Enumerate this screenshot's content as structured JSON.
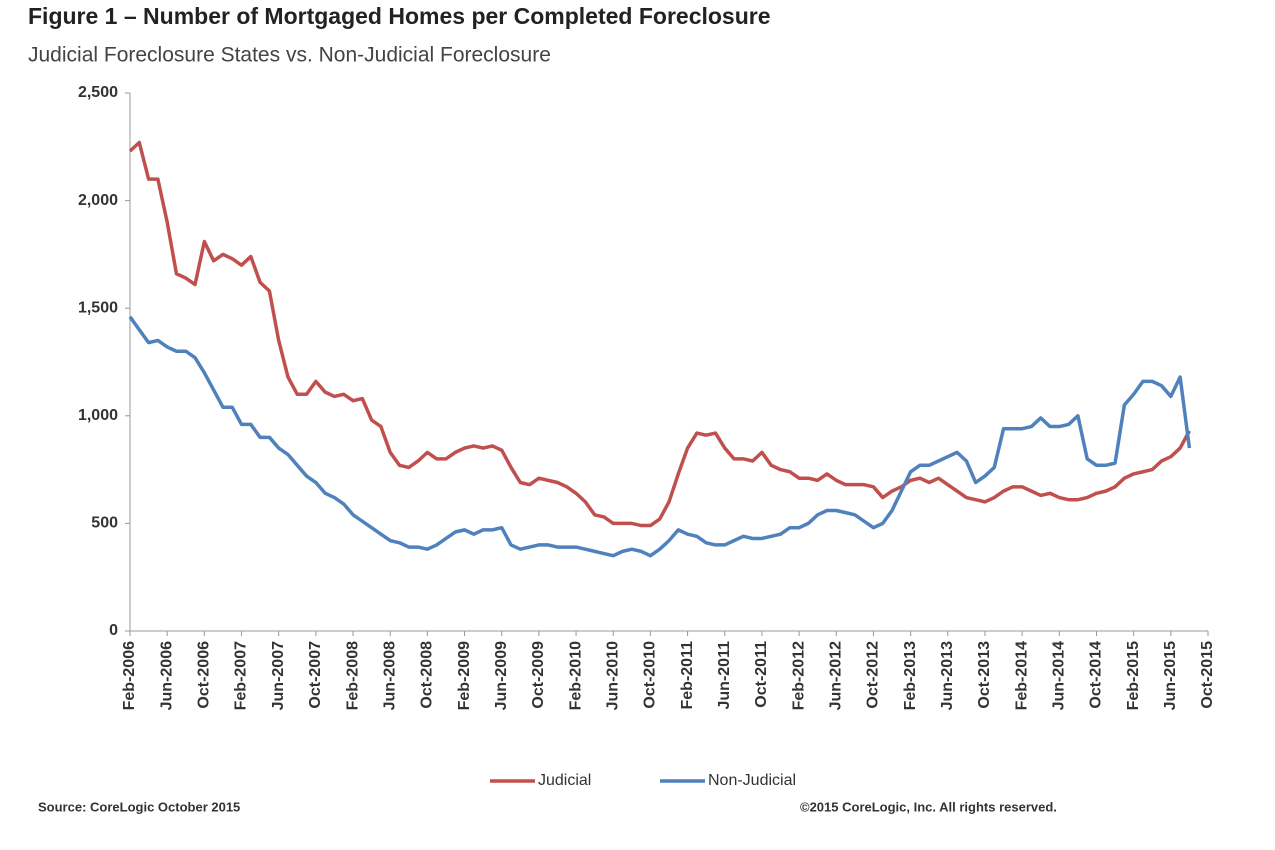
{
  "chart_data": {
    "type": "line",
    "title": "Figure 1 – Number of Mortgaged Homes per Completed Foreclosure",
    "subtitle": "Judicial Foreclosure States vs. Non-Judicial Foreclosure",
    "source": "Source: CoreLogic  October 2015",
    "copyright": "©2015 CoreLogic, Inc. All rights reserved.",
    "categories": [
      "Feb-2006",
      null,
      null,
      null,
      "Jun-2006",
      null,
      null,
      null,
      "Oct-2006",
      null,
      null,
      null,
      "Feb-2007",
      null,
      null,
      null,
      "Jun-2007",
      null,
      null,
      null,
      "Oct-2007",
      null,
      null,
      null,
      "Feb-2008",
      null,
      null,
      null,
      "Jun-2008",
      null,
      null,
      null,
      "Oct-2008",
      null,
      null,
      null,
      "Feb-2009",
      null,
      null,
      null,
      "Jun-2009",
      null,
      null,
      null,
      "Oct-2009",
      null,
      null,
      null,
      "Feb-2010",
      null,
      null,
      null,
      "Jun-2010",
      null,
      null,
      null,
      "Oct-2010",
      null,
      null,
      null,
      "Feb-2011",
      null,
      null,
      null,
      "Jun-2011",
      null,
      null,
      null,
      "Oct-2011",
      null,
      null,
      null,
      "Feb-2012",
      null,
      null,
      null,
      "Jun-2012",
      null,
      null,
      null,
      "Oct-2012",
      null,
      null,
      null,
      "Feb-2013",
      null,
      null,
      null,
      "Jun-2013",
      null,
      null,
      null,
      "Oct-2013",
      null,
      null,
      null,
      "Feb-2014",
      null,
      null,
      null,
      "Jun-2014",
      null,
      null,
      null,
      "Oct-2014",
      null,
      null,
      null,
      "Feb-2015",
      null,
      null,
      null,
      "Jun-2015",
      null,
      null,
      null,
      "Oct-2015"
    ],
    "series": [
      {
        "name": "Judicial",
        "color": "#c0504d",
        "values": [
          2230,
          2270,
          2100,
          2100,
          1900,
          1660,
          1640,
          1610,
          1810,
          1720,
          1750,
          1730,
          1700,
          1740,
          1620,
          1580,
          1350,
          1180,
          1100,
          1100,
          1160,
          1110,
          1090,
          1100,
          1070,
          1080,
          980,
          950,
          830,
          770,
          760,
          790,
          830,
          800,
          800,
          830,
          850,
          860,
          850,
          860,
          840,
          760,
          690,
          680,
          710,
          700,
          690,
          670,
          640,
          600,
          540,
          530,
          500,
          500,
          500,
          490,
          490,
          520,
          600,
          730,
          850,
          920,
          910,
          920,
          850,
          800,
          800,
          790,
          830,
          770,
          750,
          740,
          710,
          710,
          700,
          730,
          700,
          680,
          680,
          680,
          670,
          620,
          650,
          670,
          700,
          710,
          690,
          710,
          680,
          650,
          620,
          610,
          600,
          620,
          650,
          670,
          670,
          650,
          630,
          640,
          620,
          610,
          610,
          620,
          640,
          650,
          670,
          710,
          730,
          740,
          750,
          790,
          810,
          850,
          930,
          null,
          null
        ]
      },
      {
        "name": "Non-Judicial",
        "color": "#4f81bd",
        "values": [
          1460,
          1400,
          1340,
          1350,
          1320,
          1300,
          1300,
          1270,
          1200,
          1120,
          1040,
          1040,
          960,
          960,
          900,
          900,
          850,
          820,
          770,
          720,
          690,
          640,
          620,
          590,
          540,
          510,
          480,
          450,
          420,
          410,
          390,
          390,
          380,
          400,
          430,
          460,
          470,
          450,
          470,
          470,
          480,
          400,
          380,
          390,
          400,
          400,
          390,
          390,
          390,
          380,
          370,
          360,
          350,
          370,
          380,
          370,
          350,
          380,
          420,
          470,
          450,
          440,
          410,
          400,
          400,
          420,
          440,
          430,
          430,
          440,
          450,
          480,
          480,
          500,
          540,
          560,
          560,
          550,
          540,
          510,
          480,
          500,
          560,
          650,
          740,
          770,
          770,
          790,
          810,
          830,
          790,
          690,
          720,
          760,
          940,
          940,
          940,
          950,
          990,
          950,
          950,
          960,
          1000,
          800,
          770,
          770,
          780,
          1050,
          1100,
          1160,
          1160,
          1140,
          1090,
          1180,
          850,
          null,
          null
        ]
      }
    ],
    "ylim": [
      0,
      2500
    ],
    "yticks": [
      0,
      500,
      {
        "value": 1000,
        "label": "1,000"
      },
      {
        "value": 1500,
        "label": "1,500"
      },
      {
        "value": 2000,
        "label": "2,000"
      },
      {
        "value": 2500,
        "label": "2,500"
      }
    ],
    "grid": false,
    "legend": "bottom"
  }
}
